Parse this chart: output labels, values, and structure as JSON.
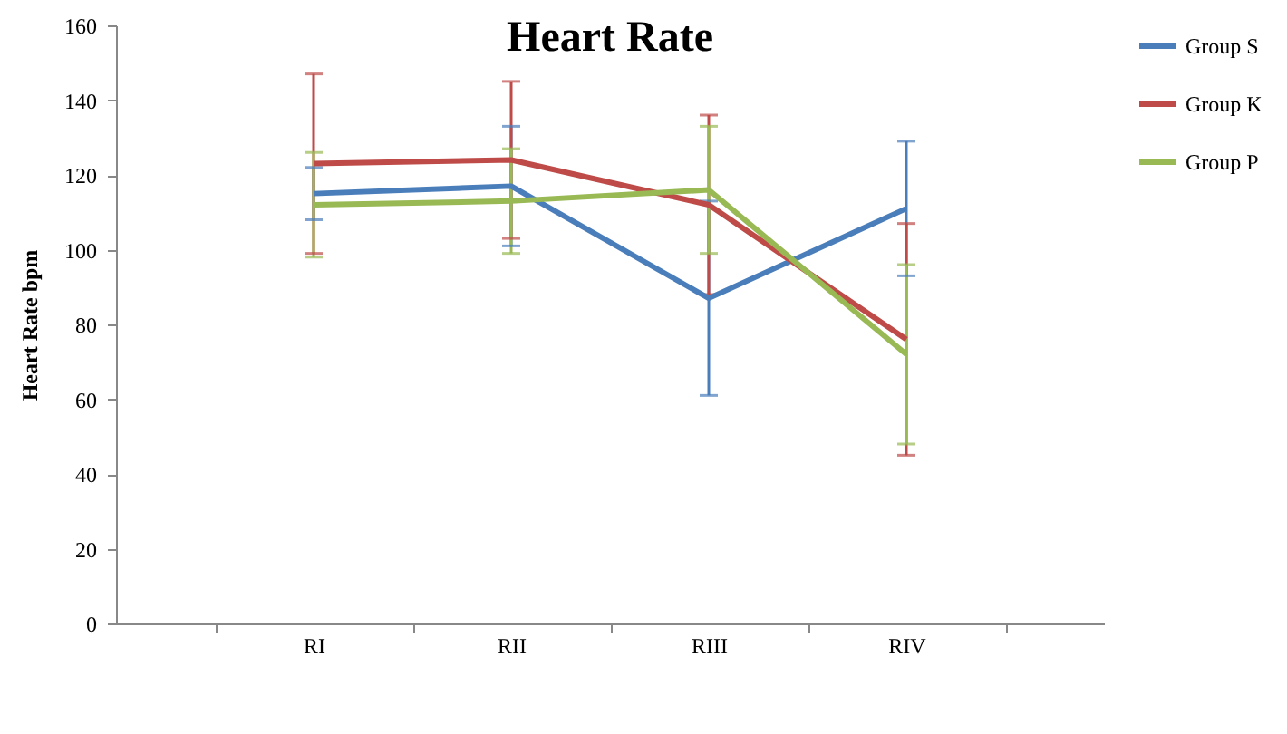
{
  "chart_data": {
    "type": "line",
    "title": "Heart Rate",
    "ylabel": "Heart Rate bpm",
    "categories": [
      "RI",
      "RII",
      "RIII",
      "RIV"
    ],
    "series": [
      {
        "name": "Group S",
        "color": "#4a7ebb",
        "values": [
          115,
          117,
          87,
          111
        ],
        "errors": [
          7,
          16,
          26,
          18
        ]
      },
      {
        "name": "Group K",
        "color": "#be4b48",
        "values": [
          123,
          124,
          112,
          76
        ],
        "errors": [
          24,
          21,
          24,
          31
        ]
      },
      {
        "name": "Group P",
        "color": "#98b954",
        "values": [
          112,
          113,
          116,
          72
        ],
        "errors": [
          14,
          14,
          17,
          24
        ]
      }
    ],
    "ylim": [
      0,
      160
    ],
    "yticks": [
      0,
      20,
      40,
      60,
      80,
      100,
      120,
      140,
      160
    ],
    "grid": false,
    "legend": "right",
    "marker": "none",
    "line_style": "solid"
  }
}
